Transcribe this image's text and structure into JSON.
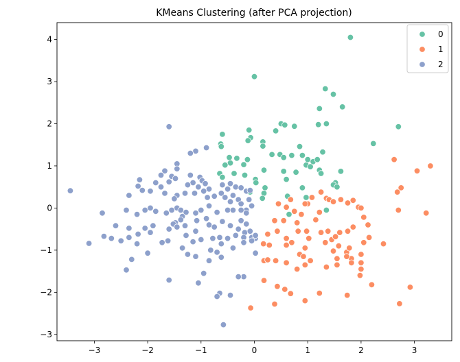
{
  "chart_data": {
    "type": "scatter",
    "title": "KMeans Clustering (after PCA projection)",
    "xlabel": "",
    "ylabel": "",
    "xlim": [
      -3.7,
      3.7
    ],
    "ylim": [
      -3.15,
      4.4
    ],
    "xticks": [
      -3,
      -2,
      -1,
      0,
      1,
      2,
      3
    ],
    "yticks": [
      -3,
      -2,
      -1,
      0,
      1,
      2,
      3,
      4
    ],
    "grid": false,
    "legend": "top-right",
    "series": [
      {
        "name": "0",
        "color": "#66c2a5",
        "points": [
          [
            1.8,
            4.05
          ],
          [
            0.0,
            3.12
          ],
          [
            1.33,
            2.83
          ],
          [
            1.48,
            2.7
          ],
          [
            1.65,
            2.4
          ],
          [
            1.22,
            2.36
          ],
          [
            1.35,
            2.0
          ],
          [
            1.2,
            1.98
          ],
          [
            0.5,
            2.0
          ],
          [
            0.57,
            1.97
          ],
          [
            0.75,
            1.94
          ],
          [
            0.4,
            1.83
          ],
          [
            -0.1,
            1.85
          ],
          [
            -0.6,
            1.75
          ],
          [
            -0.07,
            1.67
          ],
          [
            -0.12,
            1.6
          ],
          [
            -0.63,
            1.52
          ],
          [
            -0.62,
            1.46
          ],
          [
            0.16,
            1.57
          ],
          [
            0.16,
            1.47
          ],
          [
            0.85,
            1.46
          ],
          [
            1.28,
            1.33
          ],
          [
            2.7,
            1.93
          ],
          [
            2.23,
            1.53
          ],
          [
            -0.47,
            1.2
          ],
          [
            -0.33,
            1.18
          ],
          [
            -0.13,
            1.15
          ],
          [
            -0.45,
            1.07
          ],
          [
            -0.2,
            1.03
          ],
          [
            -0.55,
            1.02
          ],
          [
            0.33,
            1.27
          ],
          [
            0.48,
            1.27
          ],
          [
            0.55,
            1.2
          ],
          [
            0.7,
            1.25
          ],
          [
            0.9,
            1.25
          ],
          [
            1.0,
            1.15
          ],
          [
            1.1,
            1.1
          ],
          [
            0.97,
            1.02
          ],
          [
            1.18,
            1.15
          ],
          [
            1.05,
            0.98
          ],
          [
            1.22,
            0.9
          ],
          [
            1.25,
            0.82
          ],
          [
            1.62,
            0.87
          ],
          [
            -0.65,
            0.82
          ],
          [
            -0.6,
            0.73
          ],
          [
            -0.38,
            0.82
          ],
          [
            -0.18,
            0.78
          ],
          [
            0.18,
            0.9
          ],
          [
            0.55,
            0.87
          ],
          [
            0.6,
            0.68
          ],
          [
            0.78,
            0.85
          ],
          [
            0.02,
            0.68
          ],
          [
            0.03,
            0.6
          ],
          [
            0.2,
            0.48
          ],
          [
            0.18,
            0.35
          ],
          [
            0.15,
            0.23
          ],
          [
            -0.08,
            0.38
          ],
          [
            0.9,
            0.48
          ],
          [
            0.97,
            0.25
          ],
          [
            1.52,
            0.6
          ],
          [
            1.48,
            0.55
          ],
          [
            1.55,
            0.5
          ],
          [
            0.62,
            0.28
          ],
          [
            0.65,
            -0.15
          ],
          [
            1.35,
            -0.05
          ]
        ]
      },
      {
        "name": "1",
        "color": "#fc8d62",
        "points": [
          [
            2.62,
            1.15
          ],
          [
            3.3,
            1.0
          ],
          [
            3.05,
            0.88
          ],
          [
            2.75,
            0.48
          ],
          [
            2.68,
            0.38
          ],
          [
            2.7,
            -0.05
          ],
          [
            3.22,
            -0.12
          ],
          [
            1.25,
            0.38
          ],
          [
            1.35,
            0.23
          ],
          [
            1.4,
            0.2
          ],
          [
            1.48,
            0.15
          ],
          [
            1.62,
            0.2
          ],
          [
            1.75,
            0.12
          ],
          [
            1.85,
            0.18
          ],
          [
            1.95,
            0.02
          ],
          [
            2.0,
            0.0
          ],
          [
            2.05,
            -0.22
          ],
          [
            2.13,
            -0.4
          ],
          [
            1.08,
            0.25
          ],
          [
            1.0,
            0.1
          ],
          [
            0.68,
            0.2
          ],
          [
            0.45,
            0.1
          ],
          [
            0.6,
            0.02
          ],
          [
            0.75,
            -0.08
          ],
          [
            0.95,
            0.1
          ],
          [
            0.88,
            -0.15
          ],
          [
            1.22,
            -0.1
          ],
          [
            1.15,
            -0.28
          ],
          [
            0.8,
            -0.35
          ],
          [
            0.55,
            -0.3
          ],
          [
            0.38,
            -0.3
          ],
          [
            0.43,
            -0.55
          ],
          [
            1.25,
            -0.58
          ],
          [
            1.38,
            -0.55
          ],
          [
            1.6,
            -0.58
          ],
          [
            1.75,
            -0.55
          ],
          [
            1.85,
            -0.45
          ],
          [
            2.15,
            -0.7
          ],
          [
            2.05,
            -0.82
          ],
          [
            0.82,
            -0.55
          ],
          [
            0.98,
            -0.55
          ],
          [
            1.02,
            -0.72
          ],
          [
            0.6,
            -0.72
          ],
          [
            0.7,
            -0.82
          ],
          [
            1.33,
            -0.82
          ],
          [
            1.45,
            -0.75
          ],
          [
            1.52,
            -0.68
          ],
          [
            1.58,
            -0.9
          ],
          [
            1.73,
            -1.05
          ],
          [
            1.78,
            -0.95
          ],
          [
            2.42,
            -0.85
          ],
          [
            2.0,
            -1.1
          ],
          [
            2.0,
            -1.3
          ],
          [
            1.82,
            -1.2
          ],
          [
            0.25,
            -0.62
          ],
          [
            0.17,
            -0.85
          ],
          [
            0.28,
            -0.88
          ],
          [
            0.6,
            -0.88
          ],
          [
            0.85,
            -1.1
          ],
          [
            0.92,
            -1.15
          ],
          [
            0.95,
            -0.95
          ],
          [
            1.05,
            -1.25
          ],
          [
            1.48,
            -1.02
          ],
          [
            1.55,
            -1.2
          ],
          [
            1.73,
            -1.15
          ],
          [
            1.82,
            -1.3
          ],
          [
            0.18,
            -1.25
          ],
          [
            0.25,
            -1.23
          ],
          [
            0.4,
            -1.25
          ],
          [
            0.6,
            -1.3
          ],
          [
            0.8,
            -1.45
          ],
          [
            0.95,
            -1.35
          ],
          [
            1.35,
            -1.4
          ],
          [
            1.55,
            -1.35
          ],
          [
            2.0,
            -1.45
          ],
          [
            1.98,
            -1.6
          ],
          [
            2.2,
            -1.82
          ],
          [
            2.92,
            -1.88
          ],
          [
            0.18,
            -1.72
          ],
          [
            0.43,
            -1.86
          ],
          [
            0.57,
            -1.93
          ],
          [
            0.68,
            -2.03
          ],
          [
            1.22,
            -2.02
          ],
          [
            1.74,
            -2.07
          ],
          [
            0.38,
            -2.28
          ],
          [
            0.95,
            -2.2
          ],
          [
            2.72,
            -2.27
          ],
          [
            -0.07,
            -2.37
          ]
        ]
      },
      {
        "name": "2",
        "color": "#8da0cb",
        "points": [
          [
            -1.6,
            1.93
          ],
          [
            -0.9,
            1.43
          ],
          [
            -1.1,
            1.35
          ],
          [
            -1.2,
            1.3
          ],
          [
            -1.45,
            1.05
          ],
          [
            -1.45,
            0.93
          ],
          [
            -1.68,
            0.88
          ],
          [
            -1.75,
            0.78
          ],
          [
            -1.55,
            0.75
          ],
          [
            -1.48,
            0.7
          ],
          [
            -1.6,
            0.62
          ],
          [
            -1.85,
            0.6
          ],
          [
            -2.15,
            0.67
          ],
          [
            -2.18,
            0.52
          ],
          [
            -2.1,
            0.42
          ],
          [
            -1.95,
            0.4
          ],
          [
            -1.75,
            0.5
          ],
          [
            -1.68,
            0.35
          ],
          [
            -1.2,
            0.78
          ],
          [
            -1.02,
            0.73
          ],
          [
            -0.98,
            0.65
          ],
          [
            -0.92,
            0.58
          ],
          [
            -1.15,
            0.6
          ],
          [
            -1.25,
            0.55
          ],
          [
            -1.05,
            0.5
          ],
          [
            -0.85,
            0.45
          ],
          [
            -0.95,
            0.4
          ],
          [
            -0.6,
            0.55
          ],
          [
            -0.45,
            0.58
          ],
          [
            -0.35,
            0.5
          ],
          [
            -0.5,
            0.45
          ],
          [
            -0.62,
            0.35
          ],
          [
            -0.4,
            0.3
          ],
          [
            -0.25,
            0.48
          ],
          [
            -0.15,
            0.4
          ],
          [
            -0.08,
            0.42
          ],
          [
            -1.45,
            0.3
          ],
          [
            -1.5,
            0.22
          ],
          [
            -1.3,
            0.35
          ],
          [
            -1.12,
            0.35
          ],
          [
            -0.88,
            0.25
          ],
          [
            -0.75,
            0.28
          ],
          [
            -0.55,
            0.25
          ],
          [
            -0.45,
            0.15
          ],
          [
            -0.3,
            0.2
          ],
          [
            -0.25,
            0.1
          ],
          [
            -0.1,
            0.2
          ],
          [
            -0.05,
            0.05
          ],
          [
            -0.15,
            -0.05
          ],
          [
            -2.35,
            0.3
          ],
          [
            -2.4,
            -0.05
          ],
          [
            -2.05,
            -0.05
          ],
          [
            -1.95,
            0.0
          ],
          [
            -1.85,
            -0.08
          ],
          [
            -2.2,
            -0.15
          ],
          [
            -2.85,
            -0.12
          ],
          [
            -1.45,
            0.0
          ],
          [
            -1.38,
            -0.05
          ],
          [
            -1.55,
            -0.05
          ],
          [
            -1.65,
            -0.12
          ],
          [
            -1.28,
            -0.1
          ],
          [
            -1.1,
            -0.12
          ],
          [
            -1.0,
            -0.05
          ],
          [
            -0.85,
            0.05
          ],
          [
            -0.7,
            -0.1
          ],
          [
            -0.5,
            -0.05
          ],
          [
            -0.4,
            -0.05
          ],
          [
            -0.25,
            -0.05
          ],
          [
            -0.15,
            -0.12
          ],
          [
            -1.35,
            -0.2
          ],
          [
            -1.38,
            -0.28
          ],
          [
            -1.48,
            -0.35
          ],
          [
            -1.52,
            -0.38
          ],
          [
            -1.45,
            -0.45
          ],
          [
            -1.3,
            -0.42
          ],
          [
            -1.08,
            -0.3
          ],
          [
            -0.9,
            -0.25
          ],
          [
            -0.85,
            -0.4
          ],
          [
            -0.75,
            -0.45
          ],
          [
            -0.6,
            -0.32
          ],
          [
            -0.45,
            -0.42
          ],
          [
            -0.25,
            -0.3
          ],
          [
            -0.15,
            -0.38
          ],
          [
            -0.3,
            -0.5
          ],
          [
            -0.18,
            -0.58
          ],
          [
            -0.08,
            -0.55
          ],
          [
            -1.1,
            -0.55
          ],
          [
            -1.28,
            -0.65
          ],
          [
            -1.6,
            -0.5
          ],
          [
            -1.62,
            -0.78
          ],
          [
            -1.73,
            -0.82
          ],
          [
            -1.9,
            -0.42
          ],
          [
            -2.05,
            -0.48
          ],
          [
            -2.18,
            -0.62
          ],
          [
            -2.35,
            -0.48
          ],
          [
            -2.6,
            -0.42
          ],
          [
            -2.2,
            -0.85
          ],
          [
            -2.35,
            -0.7
          ],
          [
            -2.5,
            -0.78
          ],
          [
            -2.68,
            -0.72
          ],
          [
            -2.82,
            -0.67
          ],
          [
            -3.1,
            -0.84
          ],
          [
            -3.45,
            0.41
          ],
          [
            -1.95,
            -0.58
          ],
          [
            -2.0,
            -1.07
          ],
          [
            -2.3,
            -1.22
          ],
          [
            -2.4,
            -1.47
          ],
          [
            -1.35,
            -0.95
          ],
          [
            -1.15,
            -0.8
          ],
          [
            -1.1,
            -1.15
          ],
          [
            -1.0,
            -0.75
          ],
          [
            -0.78,
            -0.72
          ],
          [
            -0.65,
            -0.7
          ],
          [
            -0.5,
            -0.72
          ],
          [
            -0.35,
            -0.65
          ],
          [
            -0.2,
            -0.7
          ],
          [
            -0.05,
            -0.7
          ],
          [
            0.02,
            -0.72
          ],
          [
            0.02,
            -0.65
          ],
          [
            -0.62,
            -0.85
          ],
          [
            -0.4,
            -0.95
          ],
          [
            -0.2,
            -0.82
          ],
          [
            -0.05,
            -0.78
          ],
          [
            -0.82,
            -1.0
          ],
          [
            -0.7,
            -1.05
          ],
          [
            -0.85,
            -1.25
          ],
          [
            -0.62,
            -1.17
          ],
          [
            0.02,
            -1.07
          ],
          [
            -1.05,
            -1.78
          ],
          [
            -0.2,
            -1.63
          ],
          [
            -0.3,
            -1.63
          ],
          [
            -0.65,
            -2.02
          ],
          [
            -0.7,
            -2.1
          ],
          [
            -0.45,
            -2.07
          ],
          [
            -0.58,
            -2.77
          ],
          [
            -1.6,
            -1.71
          ],
          [
            -0.95,
            -1.55
          ],
          [
            -1.25,
            -1.1
          ]
        ]
      }
    ]
  }
}
